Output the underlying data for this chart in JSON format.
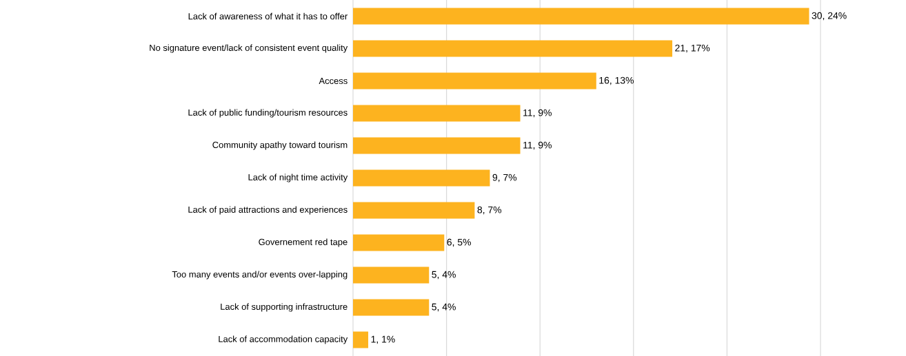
{
  "chart_data": {
    "type": "bar",
    "orientation": "horizontal",
    "categories": [
      "Lack of awareness of what it has to offer",
      "No signature event/lack of consistent event quality",
      "Access",
      "Lack of public funding/tourism resources",
      "Community apathy toward tourism",
      "Lack of night time activity",
      "Lack of paid attractions and experiences",
      "Governement red tape",
      "Too many events and/or events over-lapping",
      "Lack of supporting infrastructure",
      "Lack of accommodation capacity"
    ],
    "values": [
      30,
      21,
      16,
      11,
      11,
      9,
      8,
      6,
      5,
      5,
      1
    ],
    "value_labels": [
      "30, 24%",
      "21, 17%",
      "16, 13%",
      "11, 9%",
      "11, 9%",
      "9, 7%",
      "8, 7%",
      "6, 5%",
      "5, 4%",
      "5, 4%",
      "1, 1%"
    ],
    "color": "#fdb31f",
    "xlim": [
      0,
      30.75
    ],
    "xticks": [
      {
        "value": 0,
        "label": null
      },
      {
        "value": 6.15,
        "label": null
      },
      {
        "value": 12.3,
        "label": null
      },
      {
        "value": 18.45,
        "label": null
      },
      {
        "value": 24.6,
        "label": null
      },
      {
        "value": 30.75,
        "label": null
      }
    ],
    "grid": "x",
    "tick_labels": "y"
  }
}
